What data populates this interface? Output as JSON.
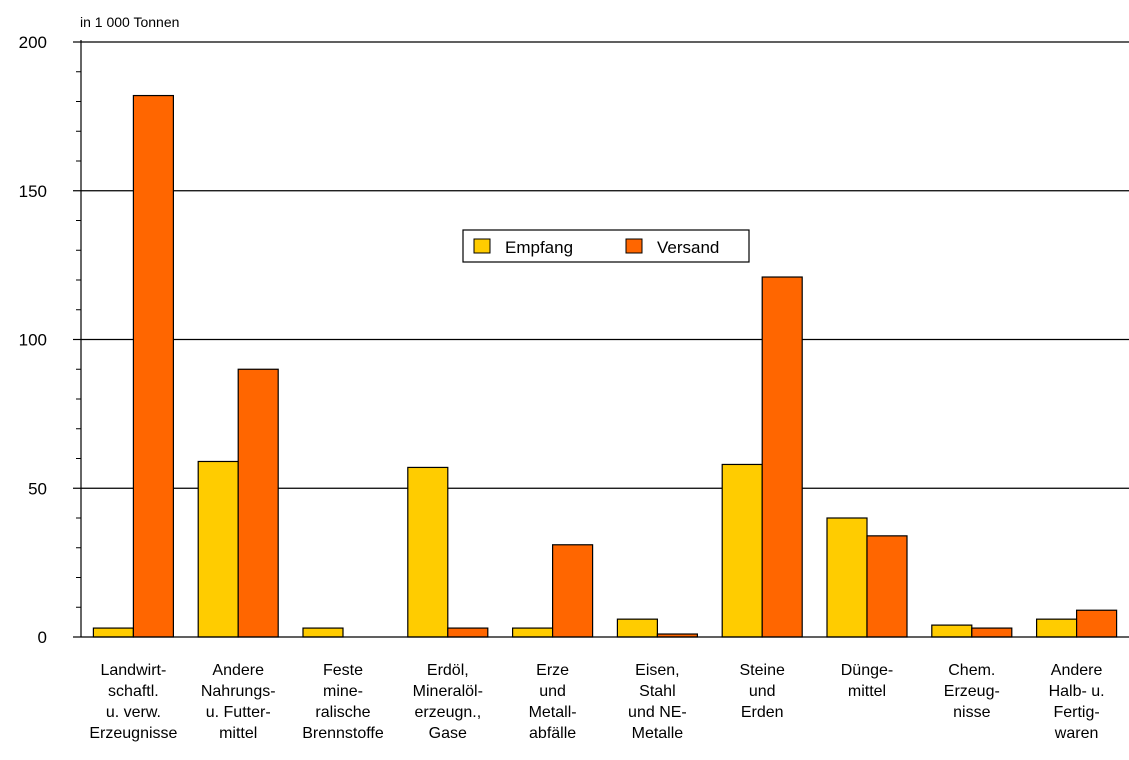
{
  "chart_data": {
    "type": "bar",
    "unit_label": "in 1 000 Tonnen",
    "title": "",
    "xlabel": "",
    "ylabel": "",
    "ylim": [
      0,
      200
    ],
    "yticks": [
      "0",
      "50",
      "100",
      "150",
      "200"
    ],
    "grid": true,
    "legend_position": "center",
    "categories": [
      [
        "Landwirt-",
        "schaftl.",
        "u. verw.",
        "Erzeugnisse"
      ],
      [
        "Andere",
        "Nahrungs-",
        "u. Futter-",
        "mittel"
      ],
      [
        "Feste",
        "mine-",
        "ralische",
        "Brennstoffe"
      ],
      [
        "Erdöl,",
        "Mineralöl-",
        "erzeugn.,",
        "Gase"
      ],
      [
        "Erze",
        "und",
        "Metall-",
        "abfälle"
      ],
      [
        "Eisen,",
        "Stahl",
        "und NE-",
        "Metalle"
      ],
      [
        "Steine",
        "und",
        "Erden"
      ],
      [
        "Dünge-",
        "mittel"
      ],
      [
        "Chem.",
        "Erzeug-",
        "nisse"
      ],
      [
        "Andere",
        "Halb- u.",
        "Fertig-",
        "waren"
      ]
    ],
    "series": [
      {
        "name": "Empfang",
        "color": "#FFCC00",
        "values": [
          3,
          59,
          3,
          57,
          3,
          6,
          58,
          40,
          4,
          6
        ]
      },
      {
        "name": "Versand",
        "color": "#FF6600",
        "values": [
          182,
          90,
          0,
          3,
          31,
          1,
          121,
          34,
          3,
          9
        ]
      }
    ]
  }
}
